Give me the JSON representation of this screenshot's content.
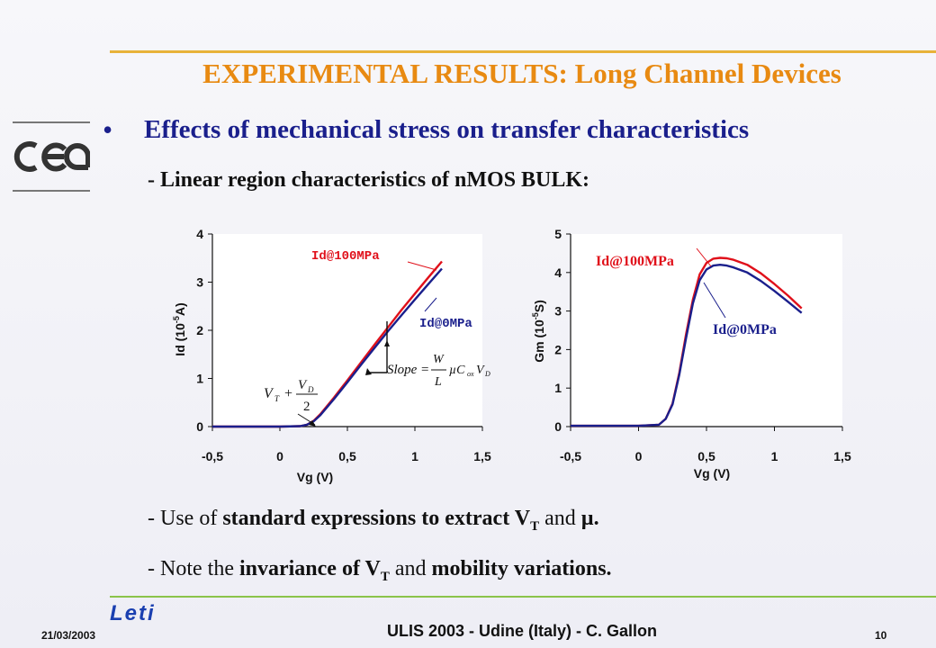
{
  "slide": {
    "title": "EXPERIMENTAL RESULTS: Long Channel Devices",
    "bullet_symbol": "•",
    "bullet": "Effects of mechanical stress on transfer characteristics",
    "subheading": "- Linear region characteristics of nMOS BULK:",
    "note1": {
      "p1": "- Use of ",
      "p2": "standard expressions to extract V",
      "sub": "T",
      "p3": " and ",
      "p4": "µ."
    },
    "note2": {
      "p1": "- Note the ",
      "p2": "invariance of V",
      "sub": "T",
      "p3": " and ",
      "p4": "mobility variations."
    }
  },
  "footer": {
    "date": "21/03/2003",
    "center": "ULIS 2003 - Udine (Italy) - C. Gallon",
    "page": "10"
  },
  "logos": {
    "left": "cea",
    "bottom": "Leti"
  },
  "colors": {
    "title": "#e88a12",
    "bullet": "#1a1f8c",
    "series_100MPa": "#e0101a",
    "series_0MPa": "#1a1f8c",
    "rule_top": "#e8b23a",
    "rule_bottom": "#8bc34a"
  },
  "chart_data": [
    {
      "type": "line",
      "xlabel": "Vg (V)",
      "ylabel": {
        "main": "Id (10",
        "exp": "-5",
        "unit": "A)"
      },
      "xlim": [
        -0.5,
        1.5
      ],
      "ylim": [
        0,
        4
      ],
      "x_ticks": [
        "-0,5",
        "0",
        "0,5",
        "1",
        "1,5"
      ],
      "y_ticks": [
        "0",
        "1",
        "2",
        "3",
        "4"
      ],
      "grid": false,
      "series": [
        {
          "name": "Id@100MPa",
          "x": [
            -0.5,
            0.0,
            0.15,
            0.2,
            0.25,
            0.3,
            0.4,
            0.5,
            0.6,
            0.7,
            0.8,
            0.9,
            1.0,
            1.1,
            1.2
          ],
          "y": [
            0,
            0,
            0.01,
            0.04,
            0.12,
            0.26,
            0.6,
            0.96,
            1.33,
            1.7,
            2.06,
            2.42,
            2.76,
            3.1,
            3.43
          ]
        },
        {
          "name": "Id@0MPa",
          "x": [
            -0.5,
            0.0,
            0.15,
            0.2,
            0.25,
            0.3,
            0.4,
            0.5,
            0.6,
            0.7,
            0.8,
            0.9,
            1.0,
            1.1,
            1.2
          ],
          "y": [
            0,
            0,
            0.01,
            0.04,
            0.11,
            0.24,
            0.57,
            0.92,
            1.28,
            1.63,
            1.98,
            2.31,
            2.64,
            2.96,
            3.28
          ]
        }
      ]
    },
    {
      "type": "line",
      "xlabel": "Vg (V)",
      "ylabel": {
        "main": "Gm (10",
        "exp": "-5",
        "unit": "S)"
      },
      "xlim": [
        -0.5,
        1.5
      ],
      "ylim": [
        0,
        5
      ],
      "x_ticks": [
        "-0,5",
        "0",
        "0,5",
        "1",
        "1,5"
      ],
      "y_ticks": [
        "0",
        "1",
        "2",
        "3",
        "4",
        "5"
      ],
      "grid": false,
      "series": [
        {
          "name": "Id@100MPa",
          "x": [
            -0.5,
            0.0,
            0.15,
            0.2,
            0.25,
            0.3,
            0.35,
            0.4,
            0.45,
            0.5,
            0.55,
            0.6,
            0.65,
            0.7,
            0.8,
            0.9,
            1.0,
            1.1,
            1.2
          ],
          "y": [
            0.02,
            0.02,
            0.05,
            0.2,
            0.6,
            1.4,
            2.4,
            3.3,
            3.95,
            4.25,
            4.36,
            4.38,
            4.37,
            4.33,
            4.2,
            3.98,
            3.7,
            3.4,
            3.07
          ]
        },
        {
          "name": "Id@0MPa",
          "x": [
            -0.5,
            0.0,
            0.15,
            0.2,
            0.25,
            0.3,
            0.35,
            0.4,
            0.45,
            0.5,
            0.55,
            0.6,
            0.65,
            0.7,
            0.8,
            0.9,
            1.0,
            1.1,
            1.2
          ],
          "y": [
            0.02,
            0.02,
            0.05,
            0.2,
            0.58,
            1.35,
            2.3,
            3.2,
            3.8,
            4.08,
            4.18,
            4.2,
            4.18,
            4.13,
            4.0,
            3.78,
            3.52,
            3.24,
            2.95
          ]
        }
      ]
    }
  ],
  "annotations": {
    "chart1_label_red": "Id@100MPa",
    "chart1_label_blue": "Id@0MPa",
    "chart2_label_red": "Id@100MPa",
    "chart2_label_blue": "Id@0MPa",
    "vt_formula": {
      "v": "V",
      "vsub": "T",
      "plus": "+",
      "num": "V",
      "numsub": "D",
      "den": "2"
    },
    "slope_formula": {
      "lhs": "Slope",
      "eq": "=",
      "W": "W",
      "L": "L",
      "mu": "µC",
      "ox": "ox",
      "v": "V",
      "vsub": "D"
    }
  }
}
